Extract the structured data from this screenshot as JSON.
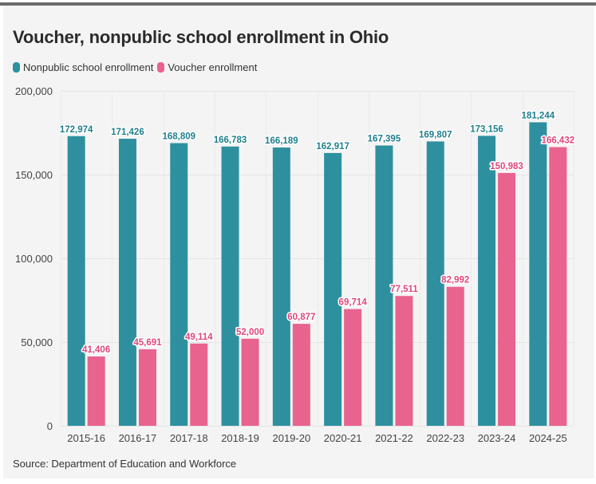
{
  "title": "Voucher, nonpublic school enrollment in Ohio",
  "legend": [
    {
      "label": "Nonpublic school enrollment",
      "color": "#2e909f"
    },
    {
      "label": "Voucher enrollment",
      "color": "#e8638d"
    }
  ],
  "source": "Source: Department of Education and Workforce",
  "chart_data": {
    "type": "bar",
    "title": "Voucher, nonpublic school enrollment in Ohio",
    "xlabel": "",
    "ylabel": "",
    "ylim": [
      0,
      200000
    ],
    "yticks": [
      0,
      50000,
      100000,
      150000,
      200000
    ],
    "ytick_labels": [
      "0",
      "50,000",
      "100,000",
      "150,000",
      "200,000"
    ],
    "grid": true,
    "legend_position": "top-left",
    "categories": [
      "2015-16",
      "2016-17",
      "2017-18",
      "2018-19",
      "2019-20",
      "2020-21",
      "2021-22",
      "2022-23",
      "2023-24",
      "2024-25"
    ],
    "series": [
      {
        "name": "Nonpublic school enrollment",
        "color": "#2e909f",
        "label_color": "#1f7f8e",
        "values": [
          172974,
          171426,
          168809,
          166783,
          166189,
          162917,
          167395,
          169807,
          173156,
          181244
        ],
        "labels": [
          "172,974",
          "171,426",
          "168,809",
          "166,783",
          "166,189",
          "162,917",
          "167,395",
          "169,807",
          "173,156",
          "181,244"
        ]
      },
      {
        "name": "Voucher enrollment",
        "color": "#e8638d",
        "label_color": "#e0477a",
        "values": [
          41406,
          45691,
          49114,
          52000,
          60877,
          69714,
          77511,
          82992,
          150983,
          166432
        ],
        "labels": [
          "41,406",
          "45,691",
          "49,114",
          "52,000",
          "60,877",
          "69,714",
          "77,511",
          "82,992",
          "150,983",
          "166,432"
        ]
      }
    ]
  }
}
